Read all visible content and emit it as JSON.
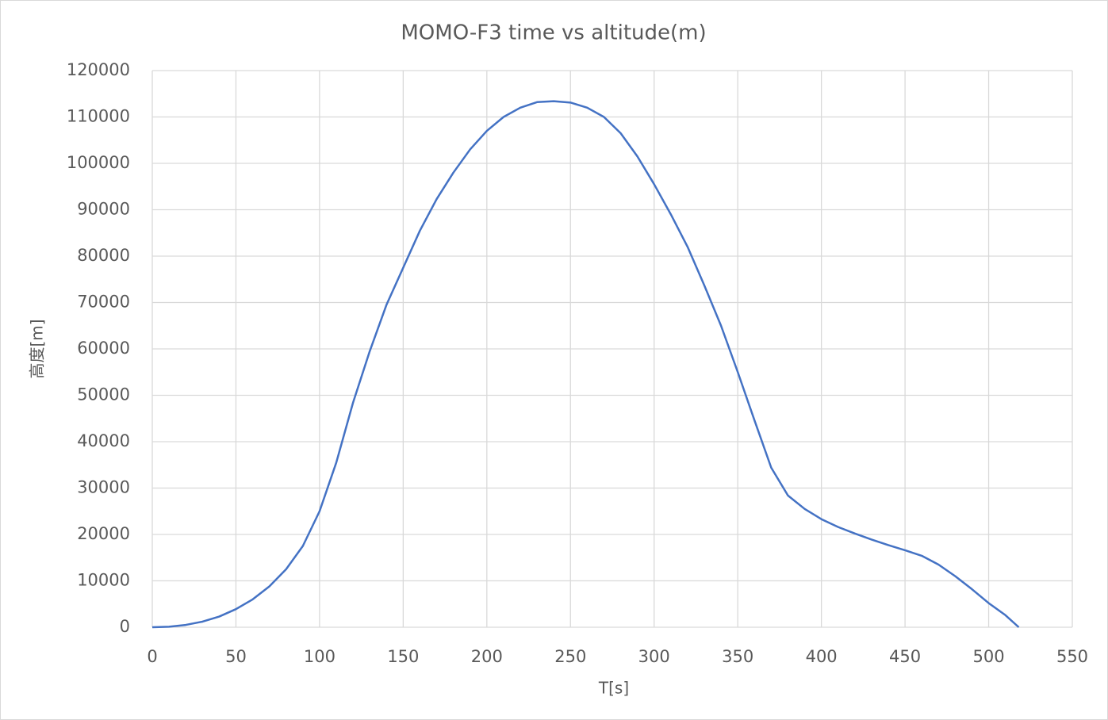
{
  "chart_data": {
    "type": "line",
    "title": "MOMO-F3 time vs altitude(m)",
    "x_label": "T[s]",
    "y_label": "高度[m]",
    "x": [
      0,
      10,
      20,
      30,
      40,
      50,
      60,
      70,
      80,
      90,
      100,
      110,
      120,
      130,
      140,
      150,
      160,
      170,
      180,
      190,
      200,
      210,
      220,
      230,
      240,
      250,
      260,
      270,
      280,
      290,
      300,
      310,
      320,
      330,
      340,
      350,
      360,
      370,
      380,
      390,
      400,
      410,
      420,
      430,
      440,
      450,
      460,
      470,
      480,
      490,
      500,
      510,
      518
    ],
    "series": [
      {
        "color": "#4472c4",
        "values": [
          0,
          100,
          500,
          1200,
          2300,
          3900,
          6000,
          8800,
          12500,
          17500,
          25000,
          35500,
          48400,
          59500,
          69500,
          77500,
          85500,
          92300,
          98000,
          103000,
          107000,
          110000,
          112000,
          113200,
          113400,
          113100,
          112000,
          110000,
          106500,
          101500,
          95500,
          89000,
          82000,
          73700,
          65000,
          55000,
          44600,
          34400,
          28400,
          25500,
          23300,
          21600,
          20200,
          18900,
          17700,
          16600,
          15400,
          13500,
          11000,
          8200,
          5200,
          2600,
          0
        ]
      }
    ],
    "xlim": [
      0,
      550
    ],
    "xticks": [
      0,
      50,
      100,
      150,
      200,
      250,
      300,
      350,
      400,
      450,
      500,
      550
    ],
    "ylim": [
      0,
      120000
    ],
    "yticks": [
      0,
      10000,
      20000,
      30000,
      40000,
      50000,
      60000,
      70000,
      80000,
      90000,
      100000,
      110000,
      120000
    ],
    "grid": true
  }
}
